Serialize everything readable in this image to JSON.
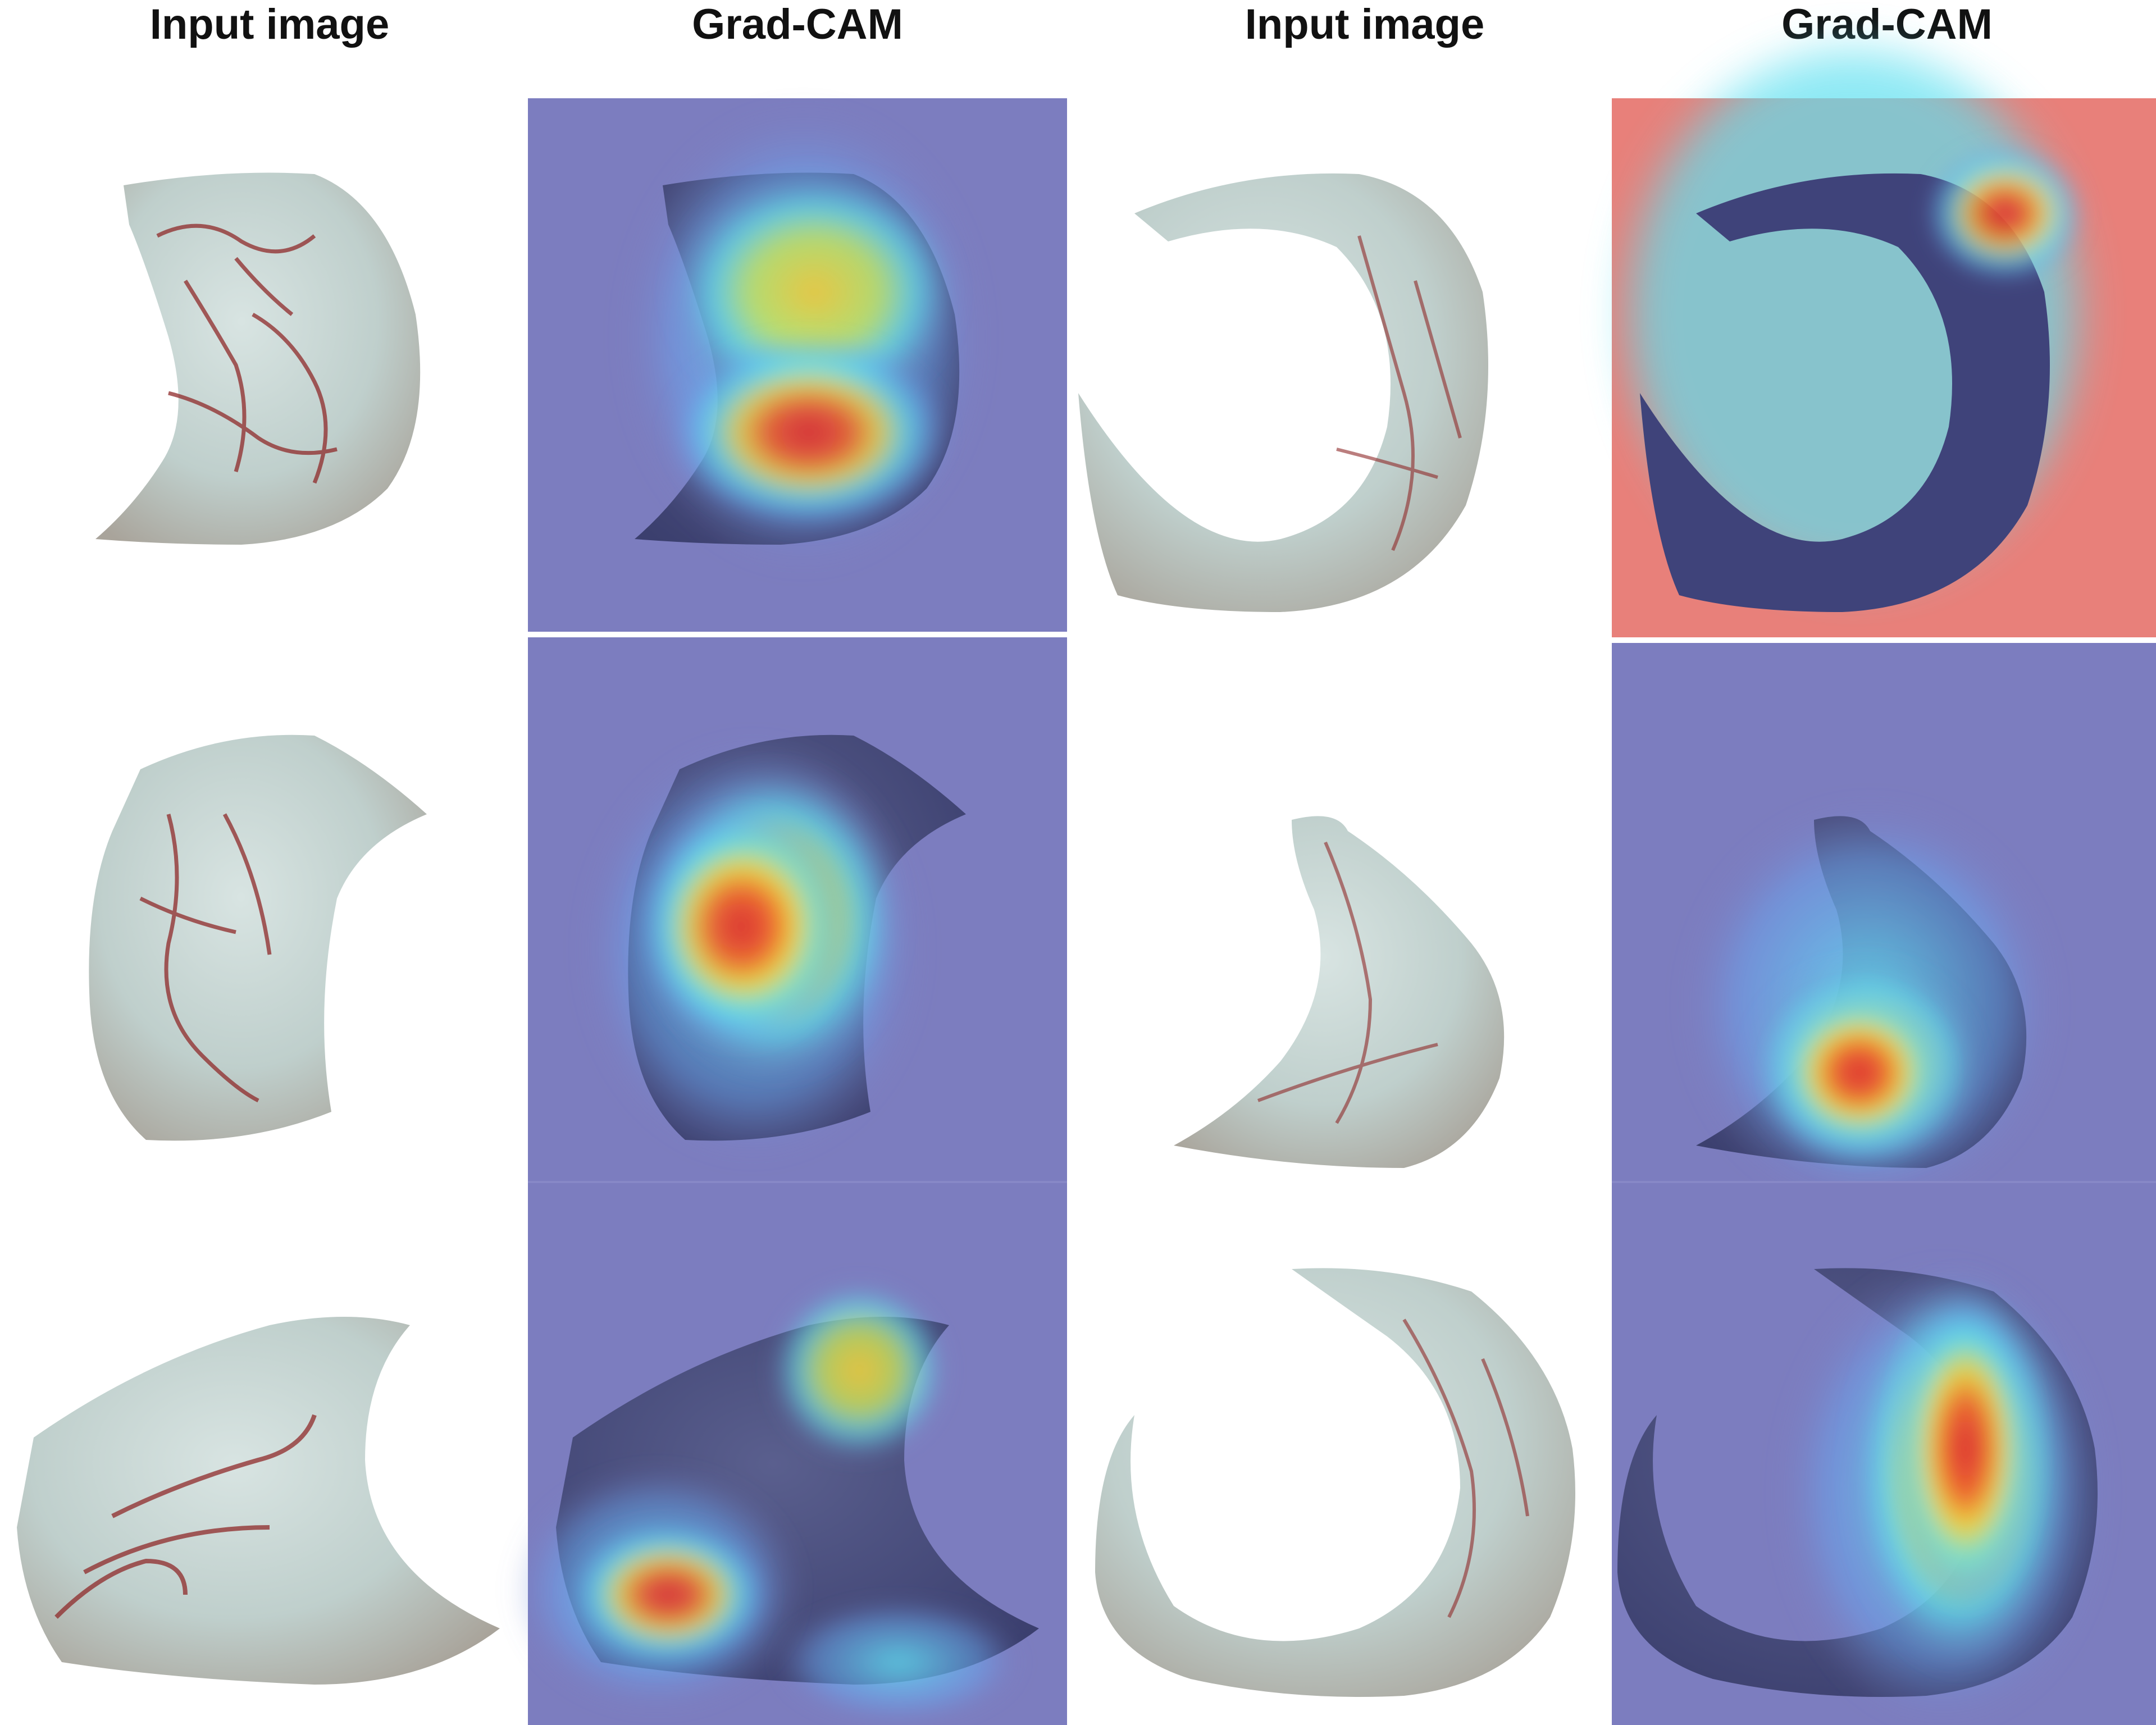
{
  "headers": [
    "Input image",
    "Grad-CAM",
    "Input image",
    "Grad-CAM"
  ],
  "colors": {
    "background": "#ffffff",
    "cam_base": "#7c7dbf",
    "tissue": "#c9d6d4",
    "vessel": "#8f2a2a",
    "heat_red": "#e8353a",
    "heat_yellow": "#f2d43a",
    "heat_cyan": "#5fe0f0"
  },
  "panels": [
    {
      "row": 1,
      "column": 1,
      "kind": "input",
      "specimen": "crescent-left-tall"
    },
    {
      "row": 1,
      "column": 2,
      "kind": "grad-cam",
      "specimen": "crescent-left-tall"
    },
    {
      "row": 1,
      "column": 3,
      "kind": "input",
      "specimen": "crescent-right-wide"
    },
    {
      "row": 1,
      "column": 4,
      "kind": "grad-cam",
      "specimen": "crescent-right-wide",
      "note": "red background"
    },
    {
      "row": 2,
      "column": 1,
      "kind": "input",
      "specimen": "crescent-left-medium"
    },
    {
      "row": 2,
      "column": 2,
      "kind": "grad-cam",
      "specimen": "crescent-left-medium"
    },
    {
      "row": 2,
      "column": 3,
      "kind": "input",
      "specimen": "crescent-right-small"
    },
    {
      "row": 2,
      "column": 4,
      "kind": "grad-cam",
      "specimen": "crescent-right-small"
    },
    {
      "row": 3,
      "column": 1,
      "kind": "input",
      "specimen": "wedge-left-wide"
    },
    {
      "row": 3,
      "column": 2,
      "kind": "grad-cam",
      "specimen": "wedge-left-wide"
    },
    {
      "row": 3,
      "column": 3,
      "kind": "input",
      "specimen": "crescent-right-thin"
    },
    {
      "row": 3,
      "column": 4,
      "kind": "grad-cam",
      "specimen": "crescent-right-thin"
    }
  ]
}
